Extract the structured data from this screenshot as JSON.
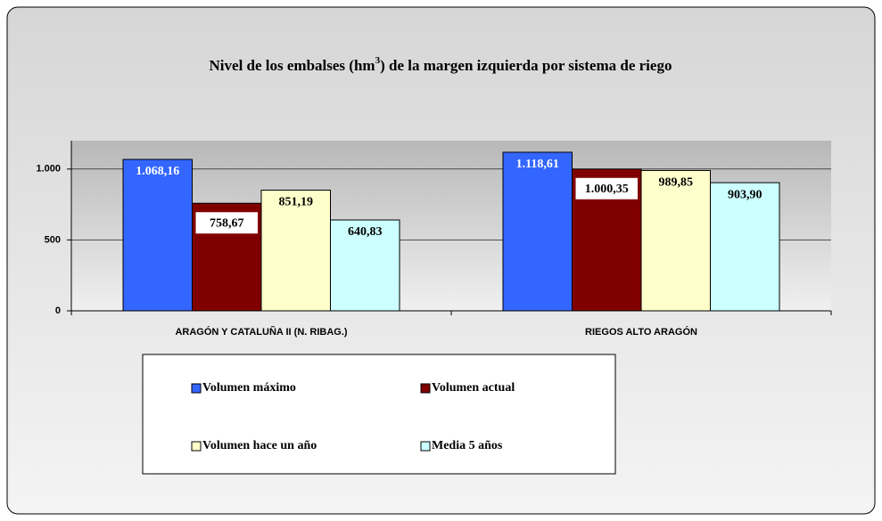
{
  "chart_data": {
    "type": "bar",
    "title": [
      "Nivel de los embalses (hm",
      "3",
      ") de la margen izquierda por sistema de riego"
    ],
    "categories": [
      "ARAGÓN Y CATALUÑA II (N. RIBAG.)",
      "RIEGOS ALTO ARAGÓN"
    ],
    "series": [
      {
        "name": "Volumen máximo",
        "color": "#3366ff",
        "label_color": "#ffffff",
        "values": [
          1068.16,
          1118.61
        ],
        "value_labels": [
          "1.068,16",
          "1.118,61"
        ]
      },
      {
        "name": "Volumen actual",
        "color": "#800000",
        "label_color": "#000000",
        "label_background": "#ffffff",
        "values": [
          758.67,
          1000.35
        ],
        "value_labels": [
          "758,67",
          "1.000,35"
        ]
      },
      {
        "name": "Volumen hace un año",
        "color": "#ffffcc",
        "label_color": "#000000",
        "values": [
          851.19,
          989.85
        ],
        "value_labels": [
          "851,19",
          "989,85"
        ]
      },
      {
        "name": "Media 5 años",
        "color": "#ccffff",
        "label_color": "#000000",
        "values": [
          640.83,
          903.9
        ],
        "value_labels": [
          "640,83",
          "903,90"
        ]
      }
    ],
    "ylim": [
      0,
      1200
    ],
    "yticks": [
      0,
      500,
      {
        "value": 1000,
        "label": "1.000"
      }
    ],
    "grid": true
  }
}
